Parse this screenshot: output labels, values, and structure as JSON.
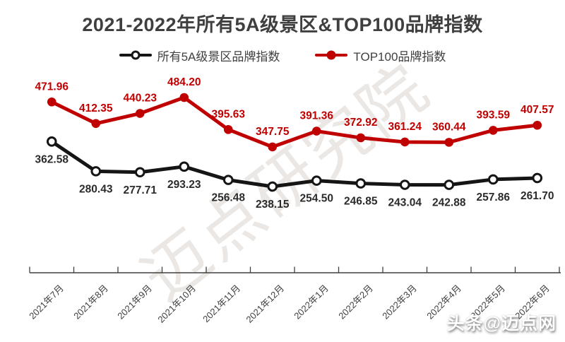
{
  "title": "2021-2022年所有5A级景区&TOP100品牌指数",
  "watermarks": {
    "diagonal": "迈点研究院",
    "badge": "头条@迈点网"
  },
  "colors": {
    "title": "#3f3f3f",
    "axis": "#404040",
    "black_series": "#151515",
    "red_series": "#c00000",
    "black_label": "#2b2b2b",
    "red_label": "#c00000"
  },
  "chart_data": {
    "type": "line",
    "title": "2021-2022年所有5A级景区&TOP100品牌指数",
    "xlabel": "",
    "ylabel": "",
    "grid": false,
    "legend_position": "top",
    "y_axis_visible": false,
    "ylim": [
      0,
      600
    ],
    "x_label_rotation": -45,
    "categories": [
      "2021年7月",
      "2021年8月",
      "2021年9月",
      "2021年10月",
      "2021年11月",
      "2021年12月",
      "2022年1月",
      "2022年2月",
      "2022年3月",
      "2022年4月",
      "2022年5月",
      "2022年6月"
    ],
    "series": [
      {
        "name": "所有5A级景区品牌指数",
        "color": "#151515",
        "label_color": "#2b2b2b",
        "marker": "open-circle",
        "label_position": "below",
        "values": [
          362.58,
          280.43,
          277.71,
          293.23,
          256.48,
          238.15,
          254.5,
          246.85,
          243.04,
          242.88,
          257.86,
          261.7
        ],
        "labels": [
          "362.58",
          "280.43",
          "277.71",
          "293.23",
          "256.48",
          "238.15",
          "254.50",
          "246.85",
          "243.04",
          "242.88",
          "257.86",
          "261.70"
        ]
      },
      {
        "name": "TOP100品牌指数",
        "color": "#c00000",
        "label_color": "#c00000",
        "marker": "filled-circle",
        "label_position": "above",
        "values": [
          471.96,
          412.35,
          440.23,
          484.2,
          395.63,
          347.75,
          391.36,
          372.92,
          361.24,
          360.44,
          393.59,
          407.57
        ],
        "labels": [
          "471.96",
          "412.35",
          "440.23",
          "484.20",
          "395.63",
          "347.75",
          "391.36",
          "372.92",
          "361.24",
          "360.44",
          "393.59",
          "407.57"
        ]
      }
    ],
    "axis_color": "#404040"
  }
}
